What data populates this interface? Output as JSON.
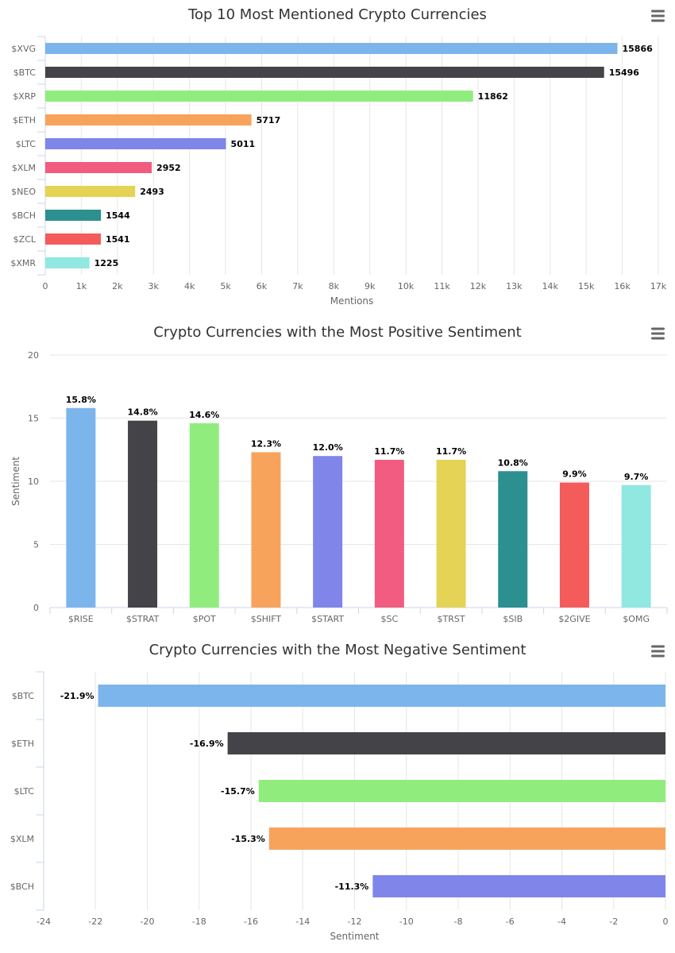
{
  "palette": [
    "#7cb5ec",
    "#434348",
    "#90ed7d",
    "#f7a35c",
    "#8085e9",
    "#f15c80",
    "#e4d354",
    "#2b908f",
    "#f45b5b",
    "#91e8e1"
  ],
  "menu_icon": "hamburger-menu-icon",
  "chart_data": [
    {
      "type": "bar",
      "orientation": "horizontal",
      "title": "Top 10 Most Mentioned Crypto Currencies",
      "xlabel": "Mentions",
      "ylabel": "",
      "categories": [
        "$XVG",
        "$BTC",
        "$XRP",
        "$ETH",
        "$LTC",
        "$XLM",
        "$NEO",
        "$BCH",
        "$ZCL",
        "$XMR"
      ],
      "values": [
        15866,
        15496,
        11862,
        5717,
        5011,
        2952,
        2493,
        1544,
        1541,
        1225
      ],
      "value_labels": [
        "15866",
        "15496",
        "11862",
        "5717",
        "5011",
        "2952",
        "2493",
        "1544",
        "1541",
        "1225"
      ],
      "axis_ticks": [
        0,
        1000,
        2000,
        3000,
        4000,
        5000,
        6000,
        7000,
        8000,
        9000,
        10000,
        11000,
        12000,
        13000,
        14000,
        15000,
        16000,
        17000
      ],
      "axis_tick_labels": [
        "0",
        "1k",
        "2k",
        "3k",
        "4k",
        "5k",
        "6k",
        "7k",
        "8k",
        "9k",
        "10k",
        "11k",
        "12k",
        "13k",
        "14k",
        "15k",
        "16k",
        "17k"
      ],
      "xlim": [
        0,
        17000
      ],
      "grid": true,
      "legend": "none"
    },
    {
      "type": "bar",
      "orientation": "vertical",
      "title": "Crypto Currencies with the Most Positive Sentiment",
      "xlabel": "",
      "ylabel": "Sentiment",
      "categories": [
        "$RISE",
        "$STRAT",
        "$POT",
        "$SHIFT",
        "$START",
        "$SC",
        "$TRST",
        "$SIB",
        "$2GIVE",
        "$OMG"
      ],
      "values": [
        15.8,
        14.8,
        14.6,
        12.3,
        12.0,
        11.7,
        11.7,
        10.8,
        9.9,
        9.7
      ],
      "value_labels": [
        "15.8%",
        "14.8%",
        "14.6%",
        "12.3%",
        "12.0%",
        "11.7%",
        "11.7%",
        "10.8%",
        "9.9%",
        "9.7%"
      ],
      "axis_ticks": [
        0,
        5,
        10,
        15,
        20
      ],
      "axis_tick_labels": [
        "0",
        "5",
        "10",
        "15",
        "20"
      ],
      "ylim": [
        0,
        20
      ],
      "grid": true,
      "legend": "none"
    },
    {
      "type": "bar",
      "orientation": "horizontal",
      "title": "Crypto Currencies with the Most Negative Sentiment",
      "xlabel": "Sentiment",
      "ylabel": "",
      "categories": [
        "$BTC",
        "$ETH",
        "$LTC",
        "$XLM",
        "$BCH"
      ],
      "values": [
        -21.9,
        -16.9,
        -15.7,
        -15.3,
        -11.3
      ],
      "value_labels": [
        "-21.9%",
        "-16.9%",
        "-15.7%",
        "-15.3%",
        "-11.3%"
      ],
      "axis_ticks": [
        -24,
        -22,
        -20,
        -18,
        -16,
        -14,
        -12,
        -10,
        -8,
        -6,
        -4,
        -2,
        0
      ],
      "axis_tick_labels": [
        "-24",
        "-22",
        "-20",
        "-18",
        "-16",
        "-14",
        "-12",
        "-10",
        "-8",
        "-6",
        "-4",
        "-2",
        "0"
      ],
      "xlim": [
        -24,
        0
      ],
      "grid": true,
      "legend": "none"
    }
  ]
}
